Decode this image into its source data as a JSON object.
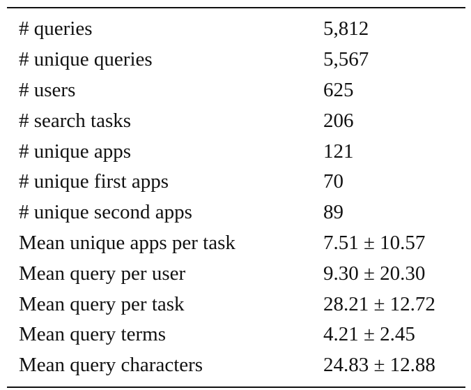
{
  "table": {
    "rows": [
      {
        "label": "# queries",
        "value": "5,812"
      },
      {
        "label": "# unique queries",
        "value": "5,567"
      },
      {
        "label": "# users",
        "value": "625"
      },
      {
        "label": "# search tasks",
        "value": "206"
      },
      {
        "label": "# unique apps",
        "value": "121"
      },
      {
        "label": "# unique first apps",
        "value": "70"
      },
      {
        "label": "# unique second apps",
        "value": "89"
      },
      {
        "label": "Mean unique apps per task",
        "value": "7.51 ± 10.57"
      },
      {
        "label": "Mean query per user",
        "value": "9.30 ± 20.30"
      },
      {
        "label": "Mean query per task",
        "value": "28.21 ± 12.72"
      },
      {
        "label": "Mean query terms",
        "value": "4.21 ± 2.45"
      },
      {
        "label": "Mean query characters",
        "value": "24.83 ± 12.88"
      }
    ]
  }
}
